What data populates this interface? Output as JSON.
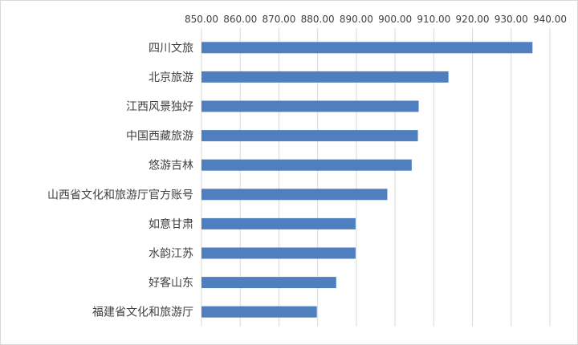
{
  "chart_data": {
    "type": "bar",
    "orientation": "horizontal",
    "title": "",
    "xlabel": "",
    "ylabel": "",
    "x_axis_position": "top",
    "xlim": [
      850,
      940
    ],
    "x_ticks": [
      850,
      860,
      870,
      880,
      890,
      900,
      910,
      920,
      930,
      940
    ],
    "x_tick_labels": [
      "850.00",
      "860.00",
      "870.00",
      "880.00",
      "890.00",
      "900.00",
      "910.00",
      "920.00",
      "930.00",
      "940.00"
    ],
    "grid": true,
    "legend": "none",
    "bar_color": "#4f7fbf",
    "categories": [
      "四川文旅",
      "北京旅游",
      "江西风景独好",
      "中国西藏旅游",
      "悠游吉林",
      "山西省文化和旅游厅官方账号",
      "如意甘肃",
      "水韵江苏",
      "好客山东",
      "福建省文化和旅游厅"
    ],
    "values": [
      935.5,
      913.8,
      906.1,
      905.9,
      904.3,
      898.0,
      889.8,
      889.8,
      884.8,
      879.8
    ]
  }
}
